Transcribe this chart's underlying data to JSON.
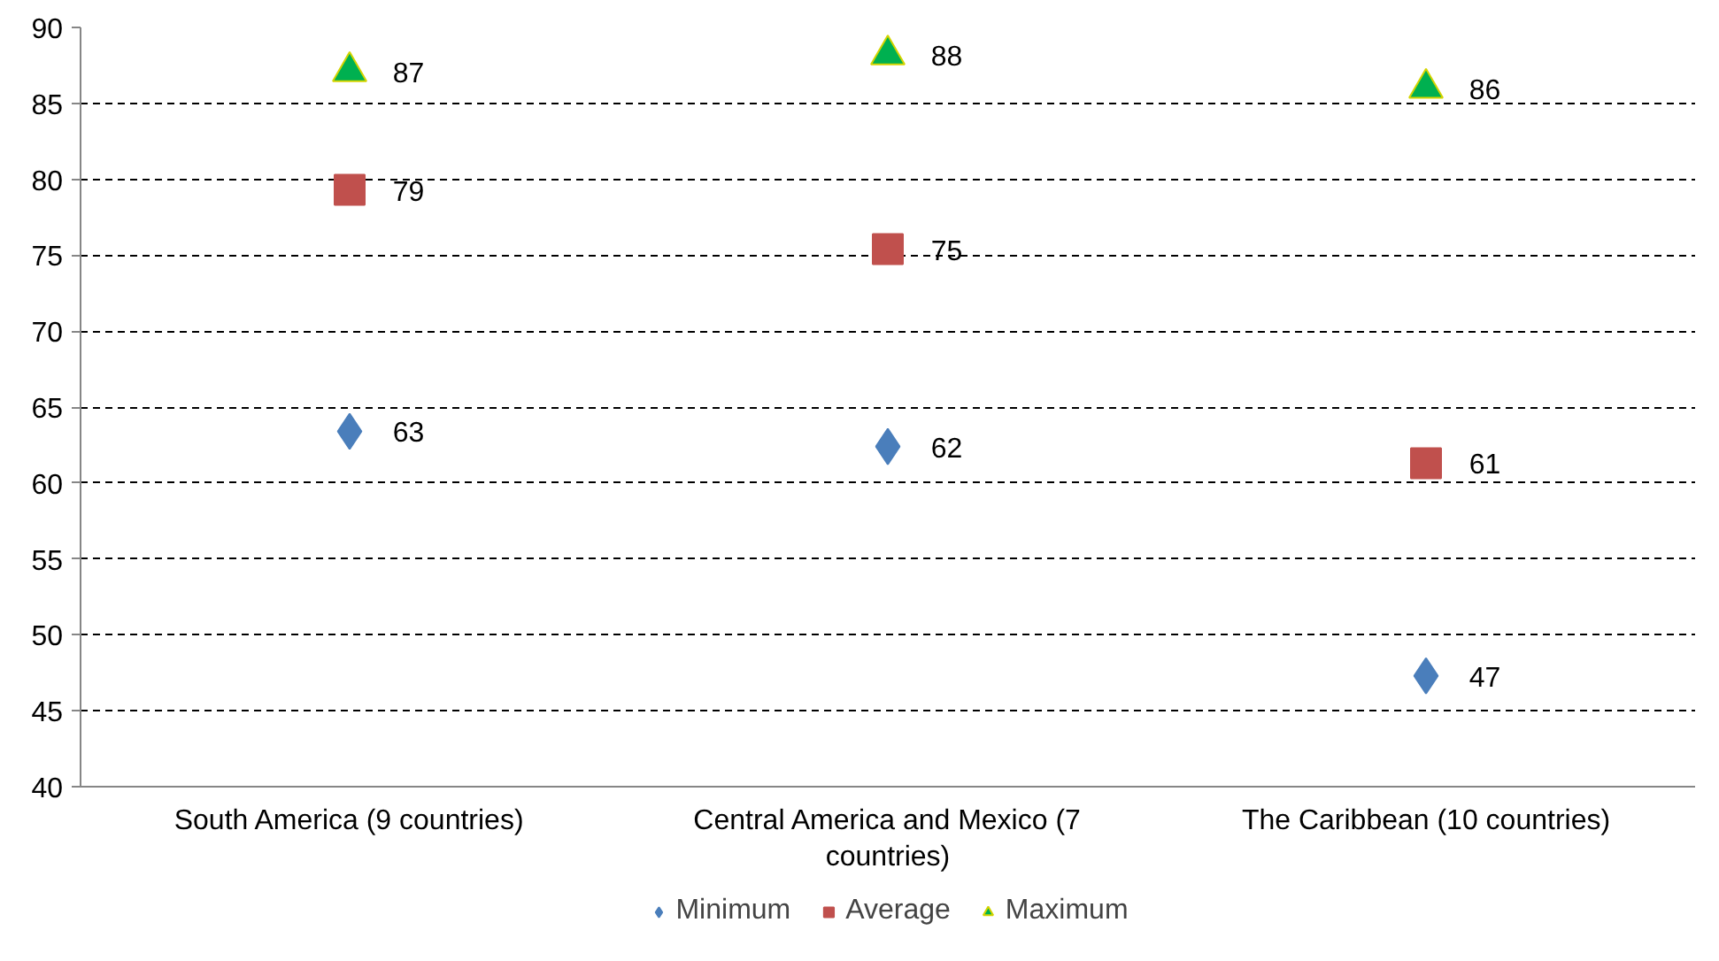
{
  "chart_data": {
    "type": "scatter",
    "categories": [
      "South America (9 countries)",
      "Central America and Mexico (7 countries)",
      "The Caribbean (10 countries)"
    ],
    "series": [
      {
        "name": "Minimum",
        "color": "#4a7ebb",
        "marker": "diamond",
        "values": [
          63.4,
          62.4,
          47.3
        ],
        "value_labels": [
          "63",
          "62",
          "47"
        ]
      },
      {
        "name": "Average",
        "color": "#c0504d",
        "marker": "square",
        "values": [
          79.3,
          75.4,
          61.3
        ],
        "value_labels": [
          "79",
          "75",
          "61"
        ]
      },
      {
        "name": "Maximum",
        "color": "#00b050",
        "marker": "triangle",
        "values": [
          87.1,
          88.2,
          86.0
        ],
        "value_labels": [
          "87",
          "88",
          "86"
        ]
      }
    ],
    "ylim": [
      40,
      90
    ],
    "yticks": [
      40,
      45,
      50,
      55,
      60,
      65,
      70,
      75,
      80,
      85,
      90
    ],
    "grid": "y",
    "legend": "bottom"
  }
}
